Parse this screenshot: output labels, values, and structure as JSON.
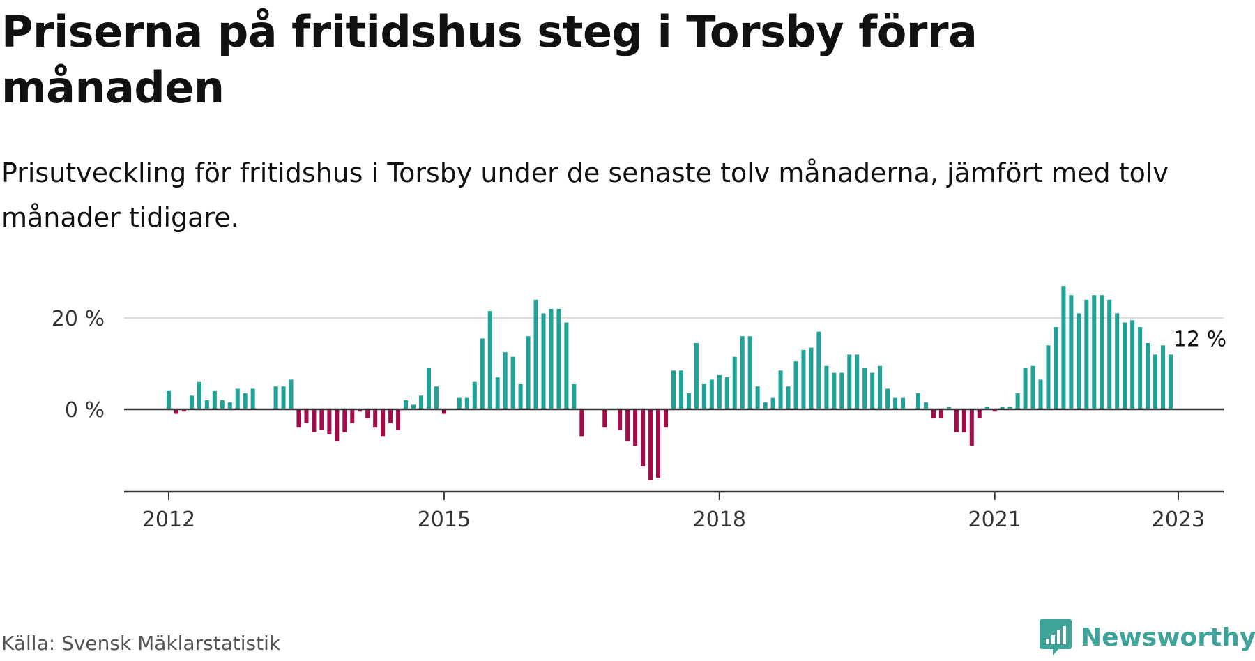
{
  "title": "Priserna på fritidshus steg i Torsby förra månaden",
  "subtitle": "Prisutveckling för fritidshus i Torsby under de senaste tolv månaderna, jämfört med tolv månader tidigare.",
  "source": "Källa: Svensk Mäklarstatistik",
  "brand": {
    "name": "Newsworthy",
    "icon": "newsworthy-logo-icon",
    "color": "#3ea49a"
  },
  "chart_data": {
    "type": "bar",
    "x_start": "2012-01",
    "x_end": "2023-01",
    "values": [
      4,
      -1,
      -0.5,
      3,
      6,
      2,
      4,
      2,
      1.5,
      4.5,
      3.5,
      4.5,
      null,
      null,
      5,
      5,
      6.5,
      -4,
      -3,
      -5,
      -4.5,
      -5.5,
      -7,
      -5,
      -3,
      -0.5,
      -2,
      -4,
      -6,
      -3,
      -4.5,
      2,
      1,
      3,
      9,
      5,
      -1,
      null,
      2.5,
      2.5,
      6,
      15.5,
      21.5,
      7,
      12.5,
      11.5,
      5.5,
      16,
      24,
      21,
      22,
      22,
      19,
      5.5,
      -6,
      null,
      null,
      -4,
      null,
      -4.5,
      -7,
      -8,
      -12.5,
      -15.5,
      -15,
      -4,
      8.5,
      8.5,
      3.5,
      14.5,
      5.5,
      6.5,
      7.5,
      7,
      11.5,
      16,
      16,
      5,
      1.5,
      2.5,
      8.5,
      5,
      10.5,
      13,
      13.5,
      17,
      9.5,
      8,
      8,
      12,
      12,
      9,
      8,
      9.5,
      4.5,
      2.5,
      2.5,
      null,
      3.5,
      1.5,
      -2,
      -2,
      0.5,
      -5,
      -5,
      -8,
      -2,
      0.5,
      -0.5,
      0.5,
      0.5,
      3.5,
      9,
      9.5,
      6.5,
      14,
      18,
      27,
      25,
      21,
      24,
      25,
      25,
      24,
      21,
      19,
      19.5,
      18,
      14.5,
      12,
      14,
      12
    ],
    "x_ticks": [
      "2012",
      "2015",
      "2018",
      "2021",
      "2023"
    ],
    "y_ticks": [
      "0 %",
      "20 %"
    ],
    "ylim": [
      -18,
      28
    ],
    "annotation": "12 %",
    "colors": {
      "positive": "#21a296",
      "negative": "#a30c4b",
      "grid": "#dddddd",
      "axis": "#333333"
    },
    "grid": true
  }
}
